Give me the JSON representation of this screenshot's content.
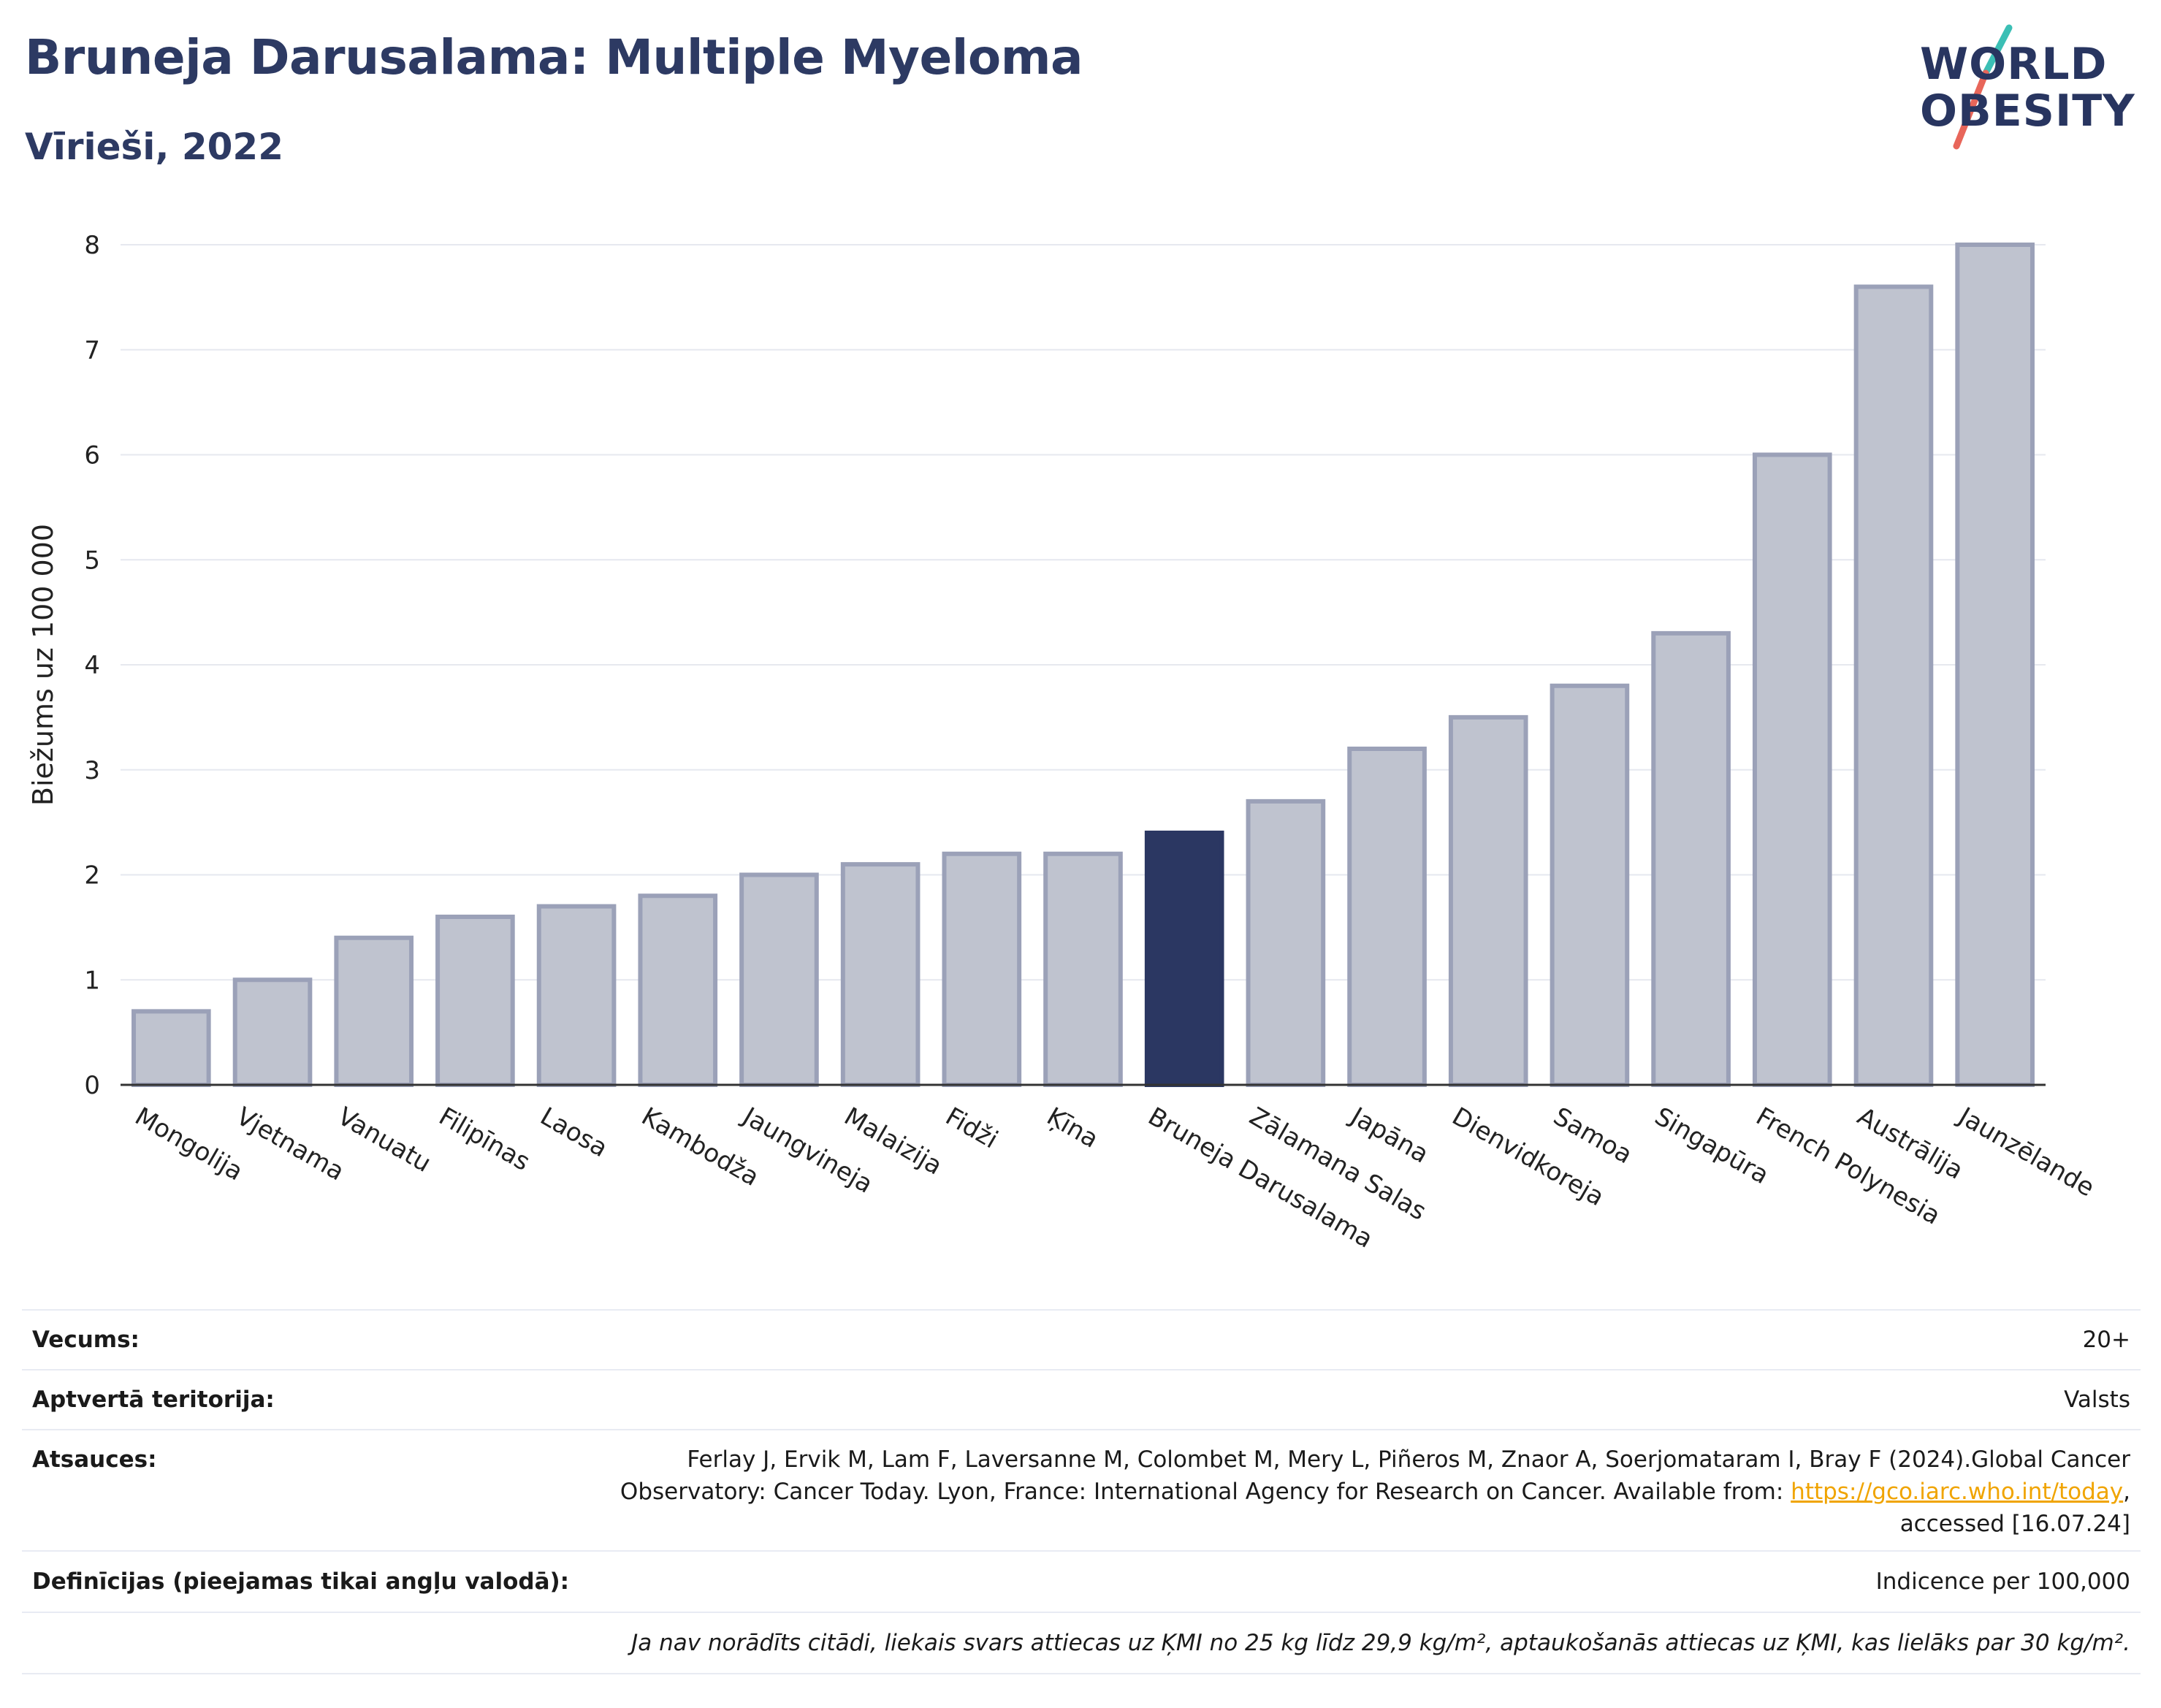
{
  "header": {
    "title": "Bruneja Darusalama: Multiple Myeloma",
    "subtitle": "Vīrieši, 2022"
  },
  "logo": {
    "line1": "WORLD",
    "line2": "OBESITY",
    "colors": {
      "text": "#283560",
      "slash_top": "#3bbfb5",
      "slash_bottom": "#e8665a"
    }
  },
  "chart_data": {
    "type": "bar",
    "ylabel": "Biežums uz 100 000",
    "xlabel": "",
    "ylim": [
      0,
      8
    ],
    "yticks": [
      0,
      1,
      2,
      3,
      4,
      5,
      6,
      7,
      8
    ],
    "grid": true,
    "highlight": "Bruneja Darusalama",
    "colors": {
      "bar": "#bfc3cf",
      "bar_edge": "#9ba1b8",
      "highlight": "#2b3762"
    },
    "categories": [
      "Mongolija",
      "Vjetnama",
      "Vanuatu",
      "Filipīnas",
      "Laosa",
      "Kambodža",
      "Jaungvineja",
      "Malaizija",
      "Fidži",
      "Ķīna",
      "Bruneja Darusalama",
      "Zālamana Salas",
      "Japāna",
      "Dienvidkoreja",
      "Samoa",
      "Singapūra",
      "French Polynesia",
      "Austrālija",
      "Jaunzēlande"
    ],
    "values": [
      0.7,
      1.0,
      1.4,
      1.6,
      1.7,
      1.8,
      2.0,
      2.1,
      2.2,
      2.2,
      2.4,
      2.7,
      3.2,
      3.5,
      3.8,
      4.3,
      6.0,
      7.6,
      8.0
    ]
  },
  "info_table": {
    "age_label": "Vecums:",
    "age_value": "20+",
    "coverage_label": "Aptvertā teritorija:",
    "coverage_value": "Valsts",
    "refs_label": "Atsauces:",
    "refs_line1": "Ferlay J, Ervik M, Lam F, Laversanne M, Colombet M, Mery L, Piñeros M, Znaor A, Soerjomataram I, Bray F (2024).Global Cancer",
    "refs_line2_prefix": "Observatory: Cancer Today. Lyon, France: International Agency for Research on Cancer. Available from: ",
    "refs_link": "https://gco.iarc.who.int/today",
    "refs_line2_suffix": ",",
    "refs_line3": "accessed [16.07.24]",
    "defs_label": "Definīcijas (pieejamas tikai angļu valodā):",
    "defs_value": "Indicence per 100,000",
    "note": "Ja nav norādīts citādi, liekais svars attiecas uz ĶMI no 25 kg līdz 29,9 kg/m², aptaukošanās attiecas uz ĶMI, kas lielāks par 30 kg/m²."
  }
}
